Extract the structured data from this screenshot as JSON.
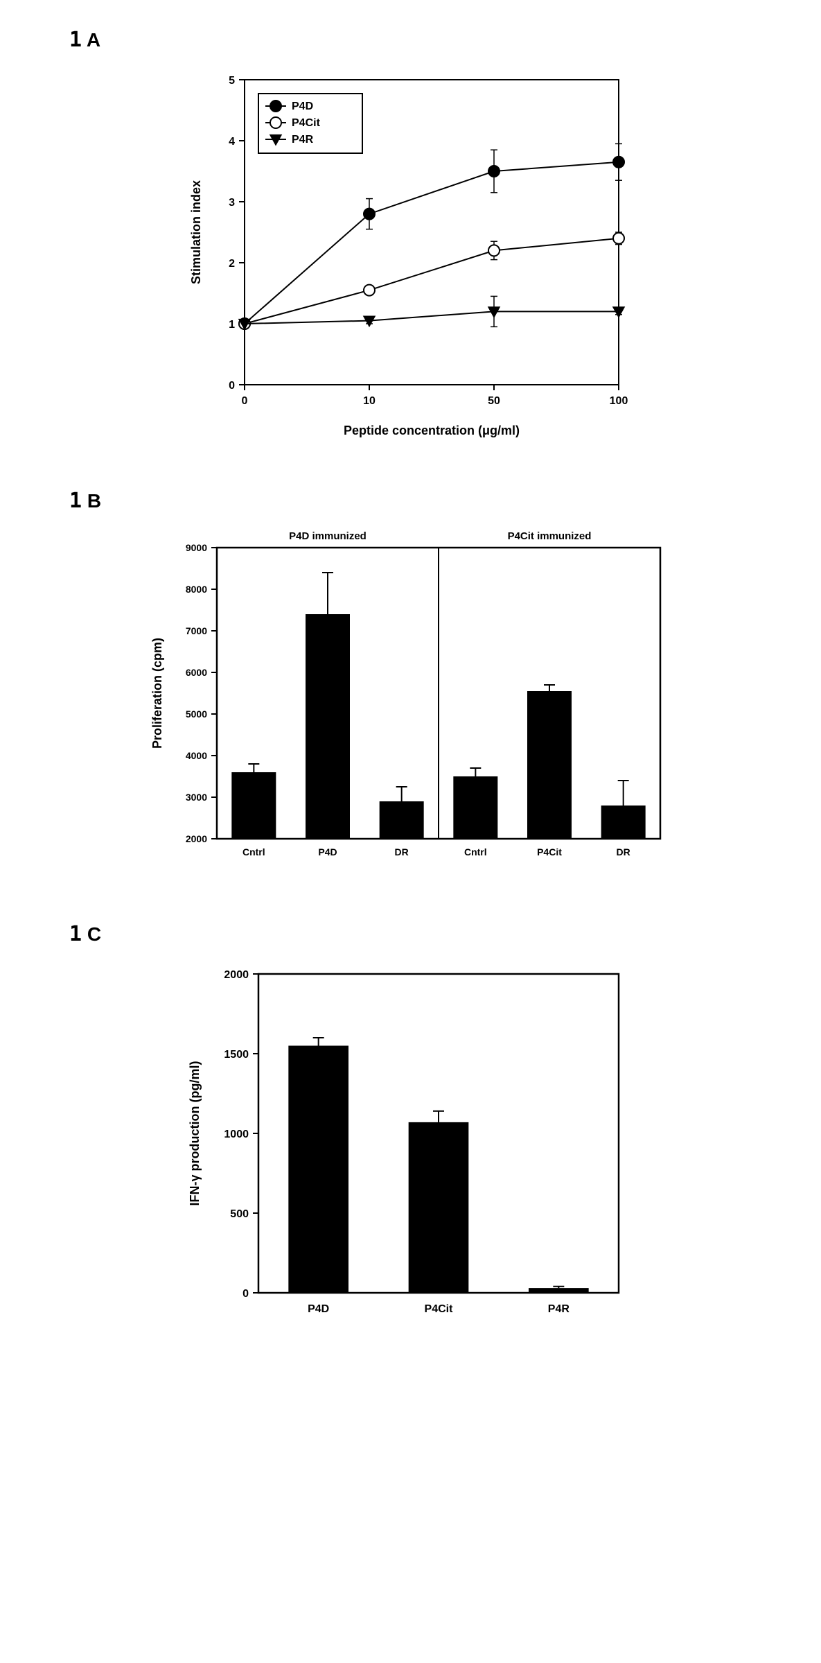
{
  "panelA": {
    "label_num": "1",
    "label_letter": "A",
    "type": "line",
    "xlabel": "Peptide concentration (μg/ml)",
    "ylabel": "Stimulation index",
    "xlabel_fontsize": 18,
    "ylabel_fontsize": 18,
    "tick_fontsize": 16,
    "legend_fontsize": 16,
    "xlim": [
      0,
      3
    ],
    "ylim": [
      0,
      5
    ],
    "xticks": [
      0,
      10,
      50,
      100
    ],
    "yticks": [
      0,
      1,
      2,
      3,
      4,
      5
    ],
    "background_color": "#ffffff",
    "axis_color": "#000000",
    "tick_color": "#000000",
    "legend_border": "#000000",
    "series": [
      {
        "name": "P4D",
        "marker": "circle-filled",
        "color": "#000000",
        "fill": "#000000",
        "values": [
          1.0,
          2.8,
          3.5,
          3.65
        ],
        "err": [
          0,
          0.25,
          0.35,
          0.3
        ]
      },
      {
        "name": "P4Cit",
        "marker": "circle-open",
        "color": "#000000",
        "fill": "#ffffff",
        "values": [
          1.0,
          1.55,
          2.2,
          2.4
        ],
        "err": [
          0,
          0.05,
          0.15,
          0.1
        ]
      },
      {
        "name": "P4R",
        "marker": "triangle-down-filled",
        "color": "#000000",
        "fill": "#000000",
        "values": [
          1.0,
          1.05,
          1.2,
          1.2
        ],
        "err": [
          0,
          0.05,
          0.25,
          0.05
        ]
      }
    ],
    "marker_size": 8,
    "line_width": 2
  },
  "panelB": {
    "label_num": "1",
    "label_letter": "B",
    "type": "bar",
    "ylabel": "Proliferation (cpm)",
    "ylabel_fontsize": 18,
    "tick_fontsize": 14,
    "title_fontsize": 15,
    "ylim": [
      2000,
      9000
    ],
    "yticks": [
      2000,
      3000,
      4000,
      5000,
      6000,
      7000,
      8000,
      9000
    ],
    "bar_color": "#000000",
    "axis_color": "#000000",
    "background_color": "#ffffff",
    "bar_width": 0.6,
    "groups": [
      {
        "title": "P4D immunized",
        "categories": [
          "Cntrl",
          "P4D",
          "DR"
        ],
        "values": [
          3600,
          7400,
          2900
        ],
        "err": [
          200,
          1000,
          350
        ]
      },
      {
        "title": "P4Cit immunized",
        "categories": [
          "Cntrl",
          "P4Cit",
          "DR"
        ],
        "values": [
          3500,
          5550,
          2800
        ],
        "err": [
          200,
          150,
          600
        ]
      }
    ]
  },
  "panelC": {
    "label_num": "1",
    "label_letter": "C",
    "type": "bar",
    "ylabel": "IFN-γ production (pg/ml)",
    "ylabel_fontsize": 18,
    "tick_fontsize": 16,
    "ylim": [
      0,
      2000
    ],
    "yticks": [
      0,
      500,
      1000,
      1500,
      2000
    ],
    "categories": [
      "P4D",
      "P4Cit",
      "P4R"
    ],
    "values": [
      1550,
      1070,
      30
    ],
    "err": [
      50,
      70,
      10
    ],
    "bar_color": "#000000",
    "axis_color": "#000000",
    "background_color": "#ffffff",
    "bar_width": 0.5
  }
}
